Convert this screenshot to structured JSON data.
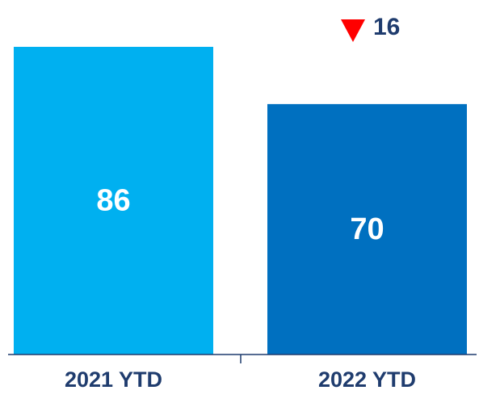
{
  "chart_data": {
    "type": "bar",
    "categories": [
      "2021 YTD",
      "2022 YTD"
    ],
    "values": [
      86,
      70
    ],
    "value_labels": [
      "86",
      "70"
    ],
    "bar_colors": [
      "#00b0f0",
      "#0070c0"
    ],
    "ylim": [
      0,
      86
    ],
    "grid": false,
    "legend": "none",
    "change": {
      "direction": "down",
      "label": "16",
      "arrow_color": "#ff0000",
      "text_color": "#1f3c6e"
    },
    "axis_color": "#1f3c6e"
  }
}
